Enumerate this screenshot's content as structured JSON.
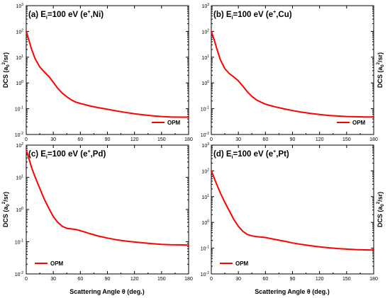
{
  "figure": {
    "xlabel": "Scattering Angle θ (deg.)"
  },
  "chart_data": [
    {
      "type": "line",
      "panel_label": "(a) E_i=100 eV (e+,Ni)",
      "label_parts": {
        "prefix": "(a) E",
        "sub": "i",
        "mid": "=100 eV (e",
        "sup": "+",
        "suffix": ",Ni)"
      },
      "ylabel": "DCS (a0²/sr)",
      "ylabel_side": "left",
      "xlabel": "",
      "xlim": [
        0,
        180
      ],
      "ylim": [
        0.01,
        1000
      ],
      "yscale": "log",
      "xticks": [
        "0",
        "30",
        "60",
        "90",
        "120",
        "150",
        "180"
      ],
      "yticks_exp": [
        "-2",
        "-1",
        "0",
        "1",
        "2",
        "3"
      ],
      "legend_position": "bottom-right",
      "color": "#ff0000",
      "series": [
        {
          "name": "OPM",
          "x": [
            0,
            3,
            6,
            10,
            15,
            20,
            25,
            30,
            35,
            40,
            45,
            50,
            55,
            60,
            70,
            80,
            90,
            100,
            110,
            120,
            130,
            140,
            150,
            160,
            170,
            180
          ],
          "y": [
            100,
            45,
            20,
            8.5,
            4.2,
            2.7,
            1.8,
            1.05,
            0.62,
            0.4,
            0.29,
            0.22,
            0.18,
            0.16,
            0.13,
            0.11,
            0.095,
            0.082,
            0.072,
            0.064,
            0.058,
            0.053,
            0.05,
            0.048,
            0.047,
            0.047
          ]
        }
      ]
    },
    {
      "type": "line",
      "panel_label": "(b) E_i=100 eV (e+,Cu)",
      "label_parts": {
        "prefix": "(b) E",
        "sub": "i",
        "mid": "=100 eV (e",
        "sup": "+",
        "suffix": ",Cu)"
      },
      "ylabel": "DCS (a0²/sr)",
      "ylabel_side": "right",
      "xlabel": "",
      "xlim": [
        0,
        180
      ],
      "ylim": [
        0.01,
        1000
      ],
      "yscale": "log",
      "xticks": [
        "0",
        "30",
        "60",
        "90",
        "120",
        "150",
        "180"
      ],
      "yticks_exp": [
        "-2",
        "-1",
        "0",
        "1",
        "2",
        "3"
      ],
      "legend_position": "bottom-right",
      "color": "#ff0000",
      "series": [
        {
          "name": "OPM",
          "x": [
            0,
            3,
            6,
            10,
            15,
            20,
            25,
            30,
            35,
            40,
            45,
            50,
            55,
            60,
            70,
            80,
            90,
            100,
            110,
            120,
            130,
            140,
            150,
            160,
            170,
            180
          ],
          "y": [
            100,
            50,
            22,
            8,
            3.6,
            2.3,
            1.7,
            1.2,
            0.75,
            0.45,
            0.3,
            0.22,
            0.18,
            0.15,
            0.12,
            0.1,
            0.085,
            0.074,
            0.066,
            0.06,
            0.055,
            0.052,
            0.05,
            0.049,
            0.048,
            0.048
          ]
        }
      ]
    },
    {
      "type": "line",
      "panel_label": "(c) E_i=100 eV (e+,Pd)",
      "label_parts": {
        "prefix": "(c) E",
        "sub": "i",
        "mid": "=100 eV (e",
        "sup": "+",
        "suffix": ",Pd)"
      },
      "ylabel": "DCS (a0²/sr)",
      "ylabel_side": "left",
      "xlabel": "Scattering Angle θ (deg.)",
      "xlim": [
        0,
        180
      ],
      "ylim": [
        0.01,
        100
      ],
      "yscale": "log",
      "xticks": [
        "0",
        "30",
        "60",
        "90",
        "120",
        "150",
        "180"
      ],
      "yticks_exp": [
        "-2",
        "-1",
        "0",
        "1",
        "2"
      ],
      "legend_position": "bottom-left",
      "color": "#ff0000",
      "series": [
        {
          "name": "OPM",
          "x": [
            0,
            3,
            6,
            10,
            15,
            20,
            25,
            30,
            35,
            40,
            45,
            50,
            55,
            60,
            65,
            70,
            80,
            90,
            100,
            110,
            120,
            130,
            140,
            150,
            160,
            170,
            180
          ],
          "y": [
            70,
            38,
            20,
            10,
            4.5,
            2.1,
            1.1,
            0.6,
            0.4,
            0.3,
            0.26,
            0.25,
            0.24,
            0.22,
            0.2,
            0.18,
            0.15,
            0.13,
            0.115,
            0.105,
            0.098,
            0.092,
            0.087,
            0.083,
            0.081,
            0.08,
            0.079
          ]
        }
      ]
    },
    {
      "type": "line",
      "panel_label": "(d) E_i=100 eV (e+,Pt)",
      "label_parts": {
        "prefix": "(d) E",
        "sub": "i",
        "mid": "=100 eV (e",
        "sup": "+",
        "suffix": ",Pt)"
      },
      "ylabel": "DCS (a0²/sr)",
      "ylabel_side": "right",
      "xlabel": "Scattering Angle θ (deg.)",
      "xlim": [
        0,
        180
      ],
      "ylim": [
        0.01,
        1000
      ],
      "yscale": "log",
      "xticks": [
        "0",
        "30",
        "60",
        "90",
        "120",
        "150",
        "180"
      ],
      "yticks_exp": [
        "-2",
        "-1",
        "0",
        "1",
        "2",
        "3"
      ],
      "legend_position": "bottom-left",
      "color": "#ff0000",
      "series": [
        {
          "name": "OPM",
          "x": [
            0,
            3,
            6,
            10,
            15,
            20,
            25,
            30,
            35,
            40,
            45,
            50,
            55,
            60,
            65,
            70,
            80,
            90,
            100,
            110,
            120,
            130,
            140,
            150,
            160,
            170,
            180
          ],
          "y": [
            100,
            55,
            30,
            14,
            6,
            2.8,
            1.3,
            0.7,
            0.45,
            0.34,
            0.3,
            0.28,
            0.27,
            0.26,
            0.24,
            0.22,
            0.19,
            0.16,
            0.14,
            0.125,
            0.113,
            0.104,
            0.097,
            0.092,
            0.088,
            0.086,
            0.085
          ]
        }
      ]
    }
  ]
}
